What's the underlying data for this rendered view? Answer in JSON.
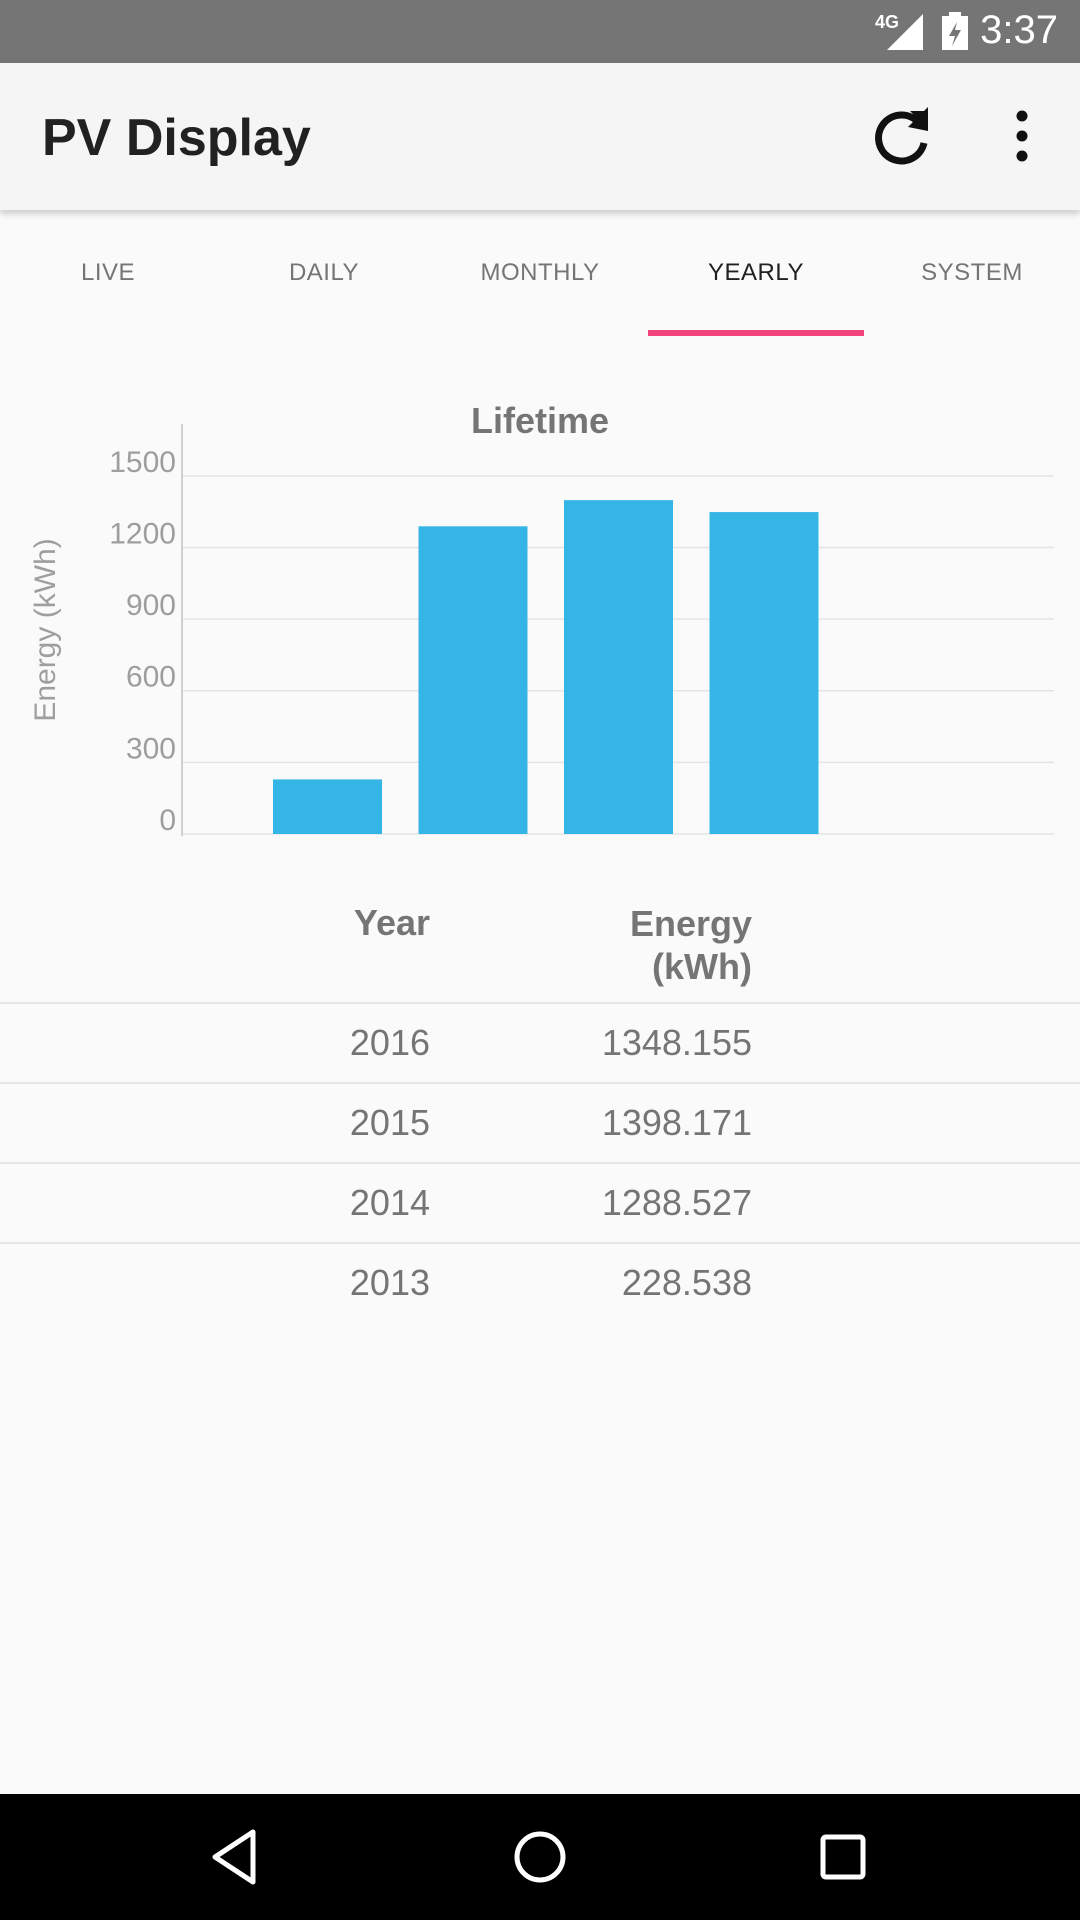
{
  "status_bar": {
    "network": "4G",
    "time": "3:37"
  },
  "app_bar": {
    "title": "PV Display",
    "refresh_icon": "refresh-icon",
    "more_icon": "more-vert-icon"
  },
  "tabs": [
    {
      "label": "LIVE",
      "active": false
    },
    {
      "label": "DAILY",
      "active": false
    },
    {
      "label": "MONTHLY",
      "active": false
    },
    {
      "label": "YEARLY",
      "active": true
    },
    {
      "label": "SYSTEM",
      "active": false
    }
  ],
  "colors": {
    "accent": "#f0437a",
    "bar": "#35b5e5"
  },
  "chart_data": {
    "type": "bar",
    "title": "Lifetime",
    "ylabel": "Energy (kWh)",
    "xlabel": "",
    "categories": [
      "2013",
      "2014",
      "2015",
      "2016"
    ],
    "values": [
      228.538,
      1288.527,
      1398.171,
      1348.155
    ],
    "ylim": [
      0,
      1650
    ],
    "yticks": [
      "0",
      "300",
      "600",
      "900",
      "1200",
      "1500"
    ],
    "x_tick_labels_shown": false,
    "grid": true
  },
  "table": {
    "header_year": "Year",
    "header_energy_line1": "Energy",
    "header_energy_line2": "(kWh)",
    "rows": [
      {
        "year": "2016",
        "energy": "1348.155"
      },
      {
        "year": "2015",
        "energy": "1398.171"
      },
      {
        "year": "2014",
        "energy": "1288.527"
      },
      {
        "year": "2013",
        "energy": "228.538"
      }
    ]
  },
  "nav_bar": {
    "back_icon": "back-icon",
    "home_icon": "home-icon",
    "recents_icon": "recents-icon"
  }
}
